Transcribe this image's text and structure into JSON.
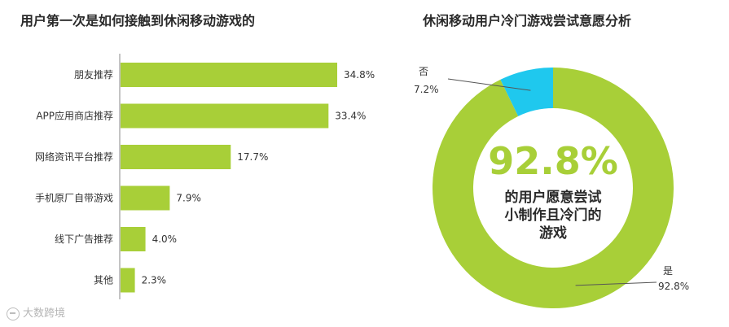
{
  "colors": {
    "green": "#a8cf38",
    "cyan": "#1fc8ee",
    "text": "#333333"
  },
  "watermark": {
    "text": "大数跨境",
    "icon": "brand-logo-icon"
  },
  "chart_data": [
    {
      "type": "bar",
      "orientation": "horizontal",
      "title": "用户第一次是如何接触到休闲移动游戏的",
      "categories": [
        "朋友推荐",
        "APP应用商店推荐",
        "网络资讯平台推荐",
        "手机原厂自带游戏",
        "线下广告推荐",
        "其他"
      ],
      "values": [
        34.8,
        33.4,
        17.7,
        7.9,
        4.0,
        2.3
      ],
      "labels": [
        "34.8%",
        "33.4%",
        "17.7%",
        "7.9%",
        "4.0%",
        "2.3%"
      ],
      "unit": "%",
      "xlim": [
        0,
        36
      ],
      "color": "#a8cf38"
    },
    {
      "type": "pie",
      "style": "donut",
      "title": "休闲移动用户冷门游戏尝试意愿分析",
      "slices": [
        {
          "name": "是",
          "value": 92.8,
          "label": "92.8%",
          "color": "#a8cf38"
        },
        {
          "name": "否",
          "value": 7.2,
          "label": "7.2%",
          "color": "#1fc8ee"
        }
      ],
      "center_value": "92.8%",
      "center_caption": [
        "的用户愿意尝试",
        "小制作且冷门的",
        "游戏"
      ]
    }
  ]
}
